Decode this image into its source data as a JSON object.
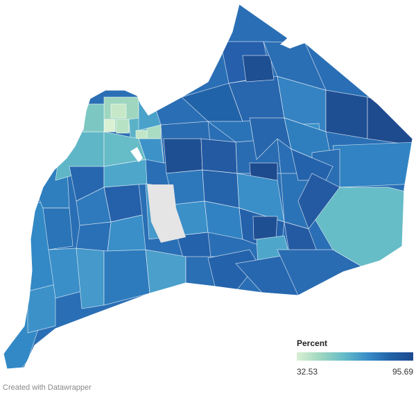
{
  "map": {
    "type": "choropleth",
    "colors": {
      "low": "#d9f0d3",
      "mid_low": "#66bcc7",
      "mid": "#3a8fc9",
      "high": "#2163a8",
      "highest": "#1e4a8e",
      "no_data": "#e5e5e5",
      "border": "#ffffff"
    }
  },
  "legend": {
    "title": "Percent",
    "min": "32.53",
    "max": "95.69",
    "gradient": [
      "#d9f0d3",
      "#9fd6bf",
      "#66bcc7",
      "#3a8fc9",
      "#2163a8",
      "#1e4a8e"
    ]
  },
  "footer": {
    "credit": "Created with Datawrapper"
  }
}
